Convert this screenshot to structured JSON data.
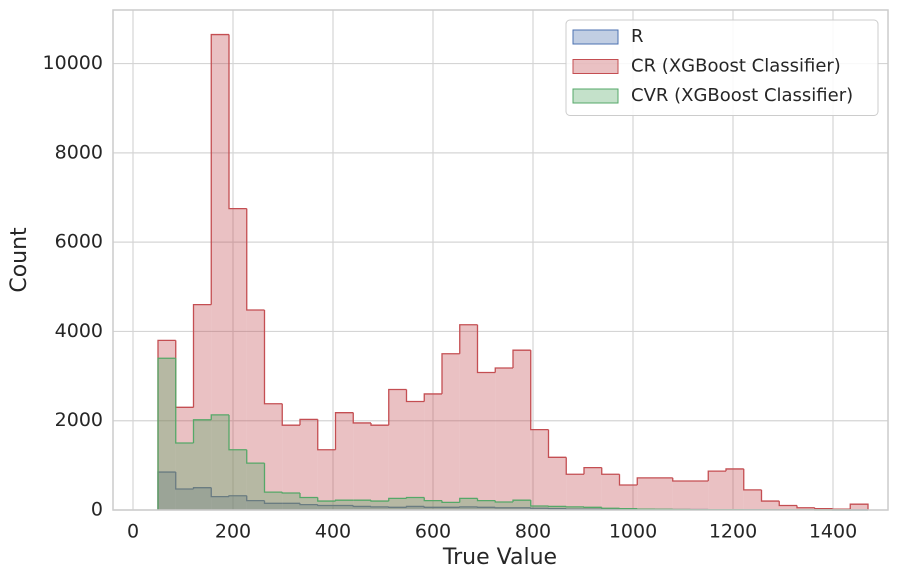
{
  "chart_data": {
    "type": "histogram",
    "x_label": "True Value",
    "y_label": "Count",
    "bins": [
      50,
      85.5,
      121,
      156.5,
      192,
      227.5,
      263,
      298.5,
      334,
      369.5,
      405,
      440.5,
      476,
      511.5,
      547,
      582.5,
      618,
      653.5,
      689,
      724.5,
      760,
      795.5,
      831,
      866.5,
      902,
      937.5,
      973,
      1008.5,
      1044,
      1079.5,
      1115,
      1150.5,
      1186,
      1221.5,
      1257,
      1292.5,
      1328,
      1363.5,
      1399,
      1434.5,
      1470
    ],
    "series": [
      {
        "name": "R",
        "color": "#4c72b0",
        "values": [
          850,
          470,
          500,
          300,
          320,
          210,
          150,
          150,
          120,
          100,
          100,
          80,
          70,
          60,
          80,
          60,
          60,
          70,
          60,
          50,
          50,
          40,
          30,
          20,
          20,
          15,
          10,
          10,
          10,
          10,
          10,
          5,
          5,
          5,
          3,
          3,
          2,
          2,
          1,
          1
        ]
      },
      {
        "name": "CR (XGBoost Classifier)",
        "color": "#c44e52",
        "values": [
          3800,
          2300,
          4600,
          10650,
          6750,
          4480,
          2380,
          1900,
          2030,
          1350,
          2180,
          1950,
          1900,
          2700,
          2430,
          2600,
          3500,
          4150,
          3080,
          3180,
          3580,
          1800,
          1180,
          800,
          950,
          800,
          560,
          720,
          720,
          650,
          650,
          870,
          920,
          450,
          200,
          100,
          50,
          30,
          20,
          130
        ]
      },
      {
        "name": "CVR (XGBoost Classifier)",
        "color": "#55a868",
        "values": [
          3400,
          1500,
          2020,
          2130,
          1350,
          1050,
          400,
          380,
          280,
          200,
          220,
          220,
          200,
          260,
          280,
          210,
          170,
          260,
          210,
          180,
          220,
          90,
          80,
          70,
          60,
          40,
          30,
          20,
          15,
          10,
          5,
          5,
          5,
          3,
          3,
          2,
          2,
          1,
          1,
          0
        ]
      }
    ],
    "xlim": [
      -40,
      1510
    ],
    "ylim": [
      0,
      11200
    ],
    "xticks": [
      0,
      200,
      400,
      600,
      800,
      1000,
      1200,
      1400
    ],
    "yticks": [
      0,
      2000,
      4000,
      6000,
      8000,
      10000
    ],
    "grid": true,
    "legend": "upper right",
    "fill_opacity": 0.35
  }
}
